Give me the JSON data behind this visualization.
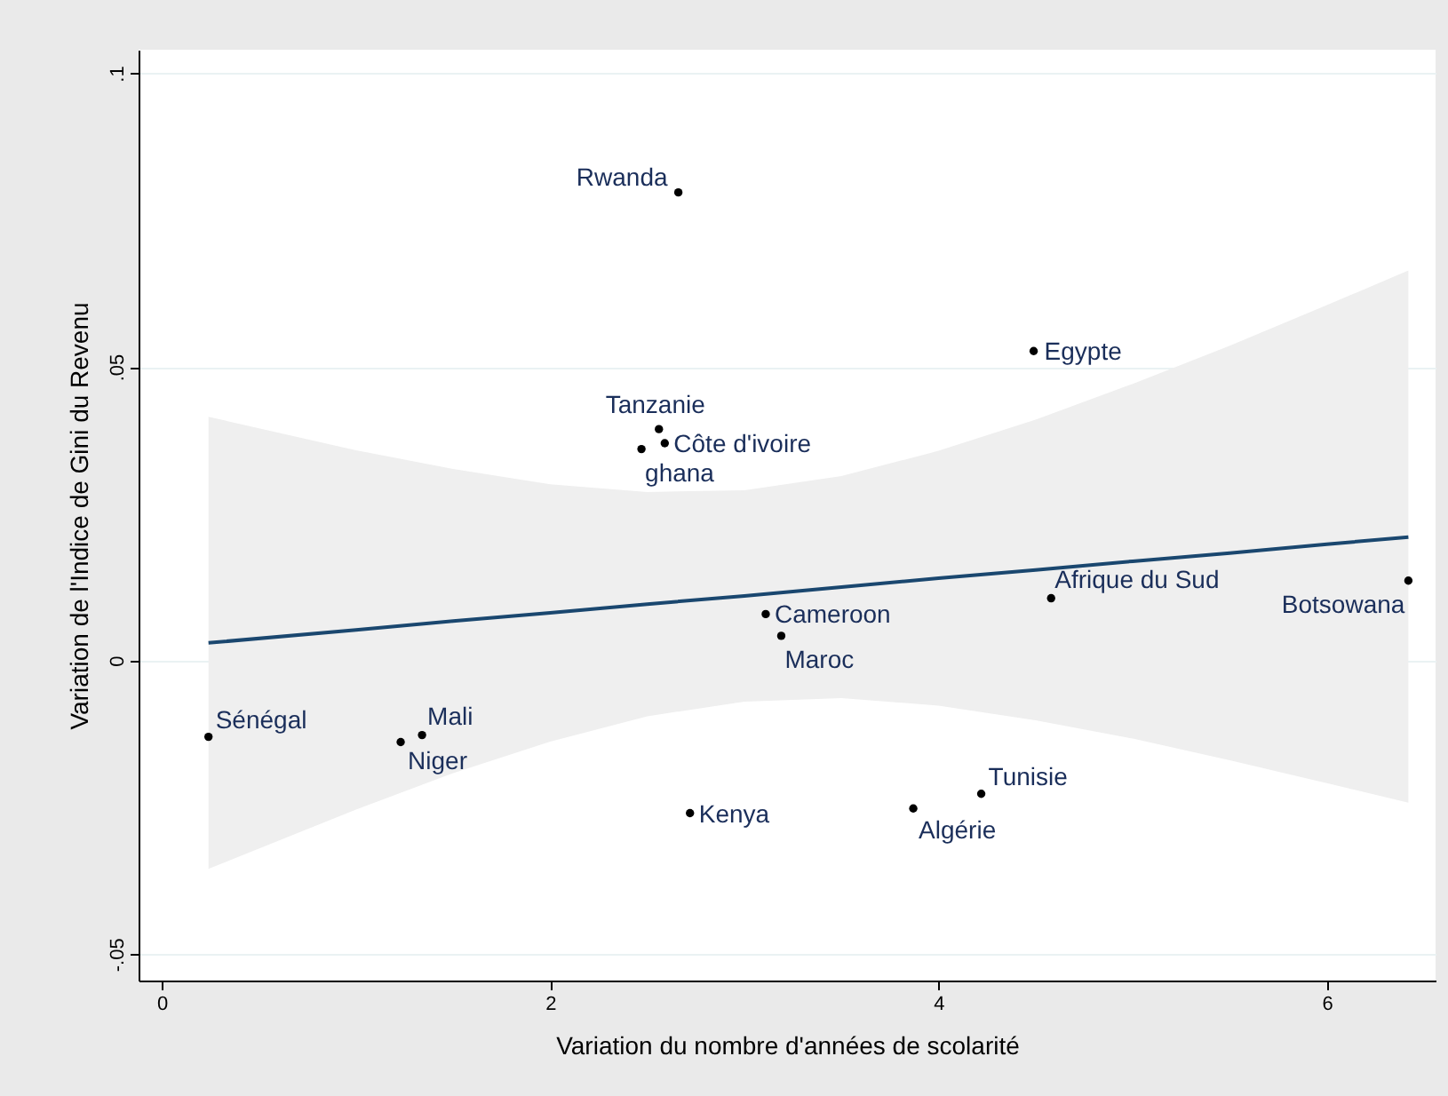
{
  "chart_data": {
    "type": "scatter",
    "xlabel": "Variation du nombre d'années de scolarité",
    "ylabel": "Variation de l'Indice de Gini du Revenu",
    "xlim": [
      -0.12,
      6.56
    ],
    "xticks": [
      0,
      2,
      4,
      6
    ],
    "ylim": [
      -0.0545,
      0.104
    ],
    "yticks": [
      {
        "value": -0.05,
        "label": "-.05"
      },
      0,
      {
        "value": 0.05,
        "label": ".05"
      },
      {
        "value": 0.1,
        "label": ".1"
      }
    ],
    "grid": "y",
    "series": [
      {
        "marker": "circle",
        "color": "#000000",
        "x": [
          2.66,
          4.49,
          2.56,
          2.59,
          2.47,
          3.11,
          3.19,
          4.58,
          6.42,
          0.24,
          1.34,
          1.23,
          2.72,
          3.87,
          4.22
        ],
        "values": [
          0.0797,
          0.0527,
          0.0394,
          0.037,
          0.036,
          0.0079,
          0.0042,
          0.0106,
          0.0136,
          -0.013,
          -0.0127,
          -0.0139,
          -0.026,
          -0.0252,
          -0.0227
        ]
      },
      {
        "type": "line",
        "color": "#1a476f",
        "x": [
          0.24,
          1,
          1.5,
          2,
          2.5,
          3,
          3.5,
          4,
          4.5,
          5,
          5.5,
          6,
          6.42
        ],
        "values": [
          0.003,
          0.0052,
          0.0067,
          0.0081,
          0.0096,
          0.011,
          0.0125,
          0.014,
          0.0154,
          0.0169,
          0.0183,
          0.0198,
          0.021
        ],
        "lower": [
          -0.0355,
          -0.0254,
          -0.0192,
          -0.0138,
          -0.0095,
          -0.007,
          -0.0064,
          -0.0077,
          -0.0102,
          -0.0133,
          -0.017,
          -0.0209,
          -0.0242
        ],
        "upper": [
          0.0415,
          0.0358,
          0.0326,
          0.03,
          0.0287,
          0.029,
          0.0314,
          0.0357,
          0.041,
          0.0471,
          0.0536,
          0.0605,
          0.0664
        ]
      }
    ],
    "annotations": [
      {
        "text": "Rwanda",
        "x": 2.66,
        "y": 0.0797
      },
      {
        "text": "Egypte",
        "x": 4.49,
        "y": 0.0527
      },
      {
        "text": "Tanzanie",
        "x": 2.56,
        "y": 0.0394
      },
      {
        "text": "Côte d'ivoire",
        "x": 2.59,
        "y": 0.037
      },
      {
        "text": "ghana",
        "x": 2.47,
        "y": 0.036
      },
      {
        "text": "Cameroon",
        "x": 3.11,
        "y": 0.0079
      },
      {
        "text": "Maroc",
        "x": 3.19,
        "y": 0.0042
      },
      {
        "text": "Afrique du Sud",
        "x": 4.58,
        "y": 0.0106
      },
      {
        "text": "Botsowana",
        "x": 6.42,
        "y": 0.0136
      },
      {
        "text": "Sénégal",
        "x": 0.24,
        "y": -0.013
      },
      {
        "text": "Mali",
        "x": 1.34,
        "y": -0.0127
      },
      {
        "text": "Niger",
        "x": 1.23,
        "y": -0.0139
      },
      {
        "text": "Kenya",
        "x": 2.72,
        "y": -0.026
      },
      {
        "text": "Algérie",
        "x": 3.87,
        "y": -0.0252
      },
      {
        "text": "Tunisie",
        "x": 4.22,
        "y": -0.0227
      }
    ]
  }
}
